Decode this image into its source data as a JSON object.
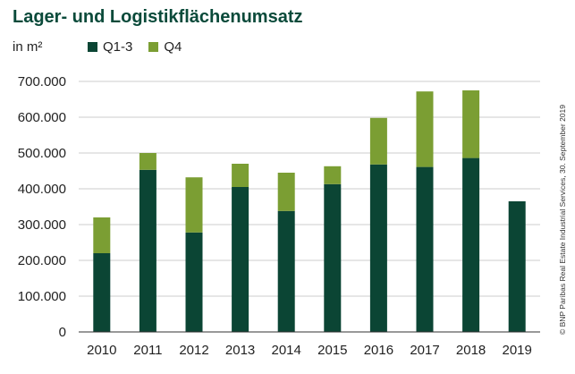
{
  "title": "Lager- und Logistikflächenumsatz",
  "unit_label": "in m²",
  "source": "© BNP Paribas Real Estate Industrial Services, 30. September 2019",
  "colors": {
    "q13": "#0b4534",
    "q4": "#7b9e33",
    "grid": "#cccccc",
    "axis": "#333333"
  },
  "chart_data": {
    "type": "bar",
    "stacked": true,
    "categories": [
      "2010",
      "2011",
      "2012",
      "2013",
      "2014",
      "2015",
      "2016",
      "2017",
      "2018",
      "2019"
    ],
    "series": [
      {
        "name": "Q1-3",
        "values": [
          220000,
          453000,
          278000,
          405000,
          338000,
          413000,
          468000,
          461000,
          486000,
          365000
        ]
      },
      {
        "name": "Q4",
        "values": [
          100000,
          47000,
          154000,
          65000,
          107000,
          50000,
          130000,
          211000,
          189000,
          0
        ]
      }
    ],
    "ylim": [
      0,
      700000
    ],
    "yticks": [
      0,
      100000,
      200000,
      300000,
      400000,
      500000,
      600000,
      700000
    ],
    "ytick_labels": [
      "0",
      "100.000",
      "200.000",
      "300.000",
      "400.000",
      "500.000",
      "600.000",
      "700.000"
    ],
    "legend_position": "top-left",
    "grid": true
  }
}
